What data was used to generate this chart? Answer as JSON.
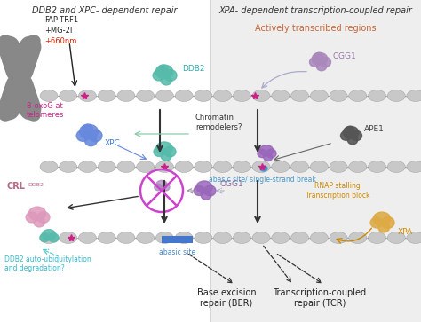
{
  "title_left": "DDB2 and XPC- dependent repair",
  "title_right": "XPA- dependent transcription-coupled repair",
  "bg_left": "#ffffff",
  "bg_right": "#efefef",
  "actively": "Actively transcribed regions",
  "actively_color": "#cc6633",
  "fap_line1": "FAP-TRF1",
  "fap_line2": "+MG-2I",
  "fap_line3": "+660nm",
  "fap_color3": "#dd2200",
  "label_8oxog": "8-oxoG at\ntelomeres",
  "color_8oxog": "#cc2288",
  "label_ddb2": "DDB2",
  "color_ddb2": "#33aaaa",
  "label_xpc": "XPC",
  "color_xpc": "#4477cc",
  "label_chromatin": "Chromatin\nremodelers?",
  "color_chromatin": "#333333",
  "label_ogg1": "OGG1",
  "color_ogg1": "#9977aa",
  "label_ape1": "APE1",
  "color_ape1": "#666666",
  "label_ssb": "abasic site/ single-strand break",
  "color_ssb": "#4499cc",
  "label_crl": "CRL",
  "label_crl_sup": "DDB2",
  "color_crl": "#bb6688",
  "label_abasic": "abasic site",
  "color_abasic": "#4488cc",
  "label_ddb2degrade": "DDB2 auto-ubiquitylation\nand degradation?",
  "color_ddb2degrade": "#33bbcc",
  "label_ber": "Base excision\nrepair (BER)",
  "label_rnap": "RNAP stalling\nTranscription block",
  "color_rnap": "#cc8800",
  "label_xpa": "XPA",
  "color_xpa": "#cc8800",
  "label_tcr": "Transcription-coupled\nrepair (TCR)",
  "nuc_color": "#c8c8c8",
  "nuc_color2": "#b8b8b8",
  "star_color": "#cc2288",
  "arrow_color": "#333333",
  "chrom_color": "#888888"
}
